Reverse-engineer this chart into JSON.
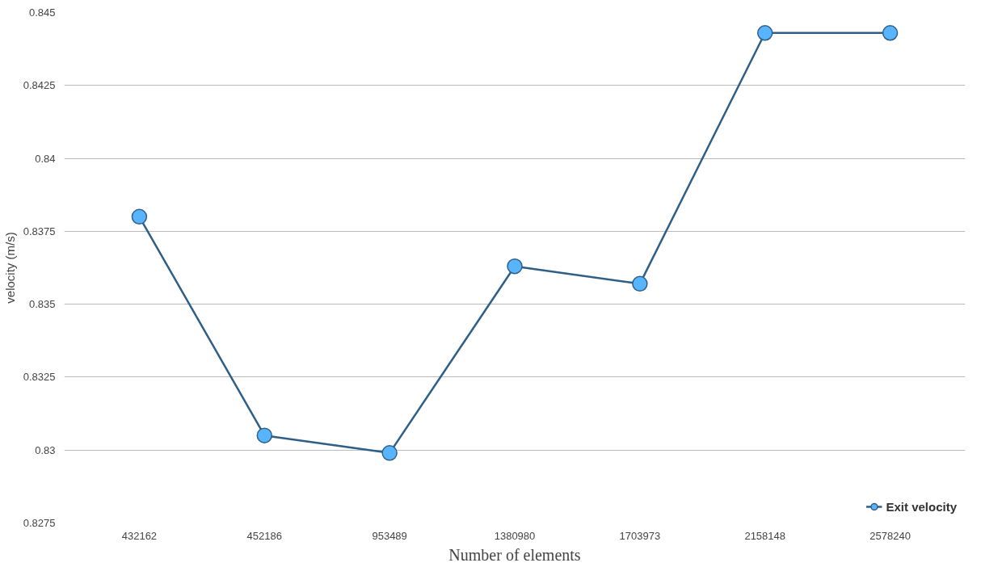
{
  "chart_data": {
    "type": "line",
    "xlabel": "Number of elements",
    "ylabel": "velocity (m/s)",
    "categories": [
      "432162",
      "452186",
      "953489",
      "1380980",
      "1703973",
      "2158148",
      "2578240"
    ],
    "series": [
      {
        "name": "Exit velocity",
        "color": "#2f5f86",
        "values": [
          0.838,
          0.8305,
          0.8299,
          0.8363,
          0.8357,
          0.8443,
          0.8443
        ]
      }
    ],
    "ylim": [
      0.8275,
      0.845
    ],
    "yticks": [
      0.8275,
      0.83,
      0.8325,
      0.835,
      0.8375,
      0.84,
      0.8425,
      0.845
    ],
    "grid": "y",
    "legend": "bottom right",
    "marker": "circle",
    "line_style": "solid"
  }
}
